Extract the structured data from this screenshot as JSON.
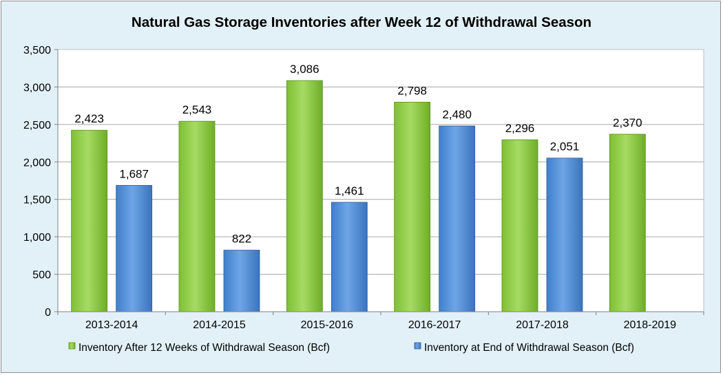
{
  "chart_data": {
    "type": "bar",
    "title": "Natural Gas Storage Inventories after Week 12 of Withdrawal Season",
    "categories": [
      "2013-2014",
      "2014-2015",
      "2015-2016",
      "2016-2017",
      "2017-2018",
      "2018-2019"
    ],
    "series": [
      {
        "name": "Inventory After 12 Weeks of Withdrawal Season (Bcf)",
        "color": "#92d050",
        "values": [
          2423,
          2543,
          3086,
          2798,
          2296,
          2370
        ],
        "labels": [
          "2,423",
          "2,543",
          "3,086",
          "2,798",
          "2,296",
          "2,370"
        ]
      },
      {
        "name": "Inventory at End of Withdrawal Season (Bcf)",
        "color": "#5b9bd5",
        "values": [
          1687,
          822,
          1461,
          2480,
          2051,
          null
        ],
        "labels": [
          "1,687",
          "822",
          "1,461",
          "2,480",
          "2,051",
          null
        ]
      }
    ],
    "ylim": [
      0,
      3500
    ],
    "yticks": [
      {
        "value": 0,
        "label": "0"
      },
      {
        "value": 500,
        "label": "500"
      },
      {
        "value": 1000,
        "label": "1,000"
      },
      {
        "value": 1500,
        "label": "1,500"
      },
      {
        "value": 2000,
        "label": "2,000"
      },
      {
        "value": 2500,
        "label": "2,500"
      },
      {
        "value": 3000,
        "label": "3,000"
      },
      {
        "value": 3500,
        "label": "3,500"
      }
    ],
    "grid": true,
    "legend": "bottom",
    "plot_background": "#ffffff",
    "frame_background": "#e2f0f7"
  }
}
